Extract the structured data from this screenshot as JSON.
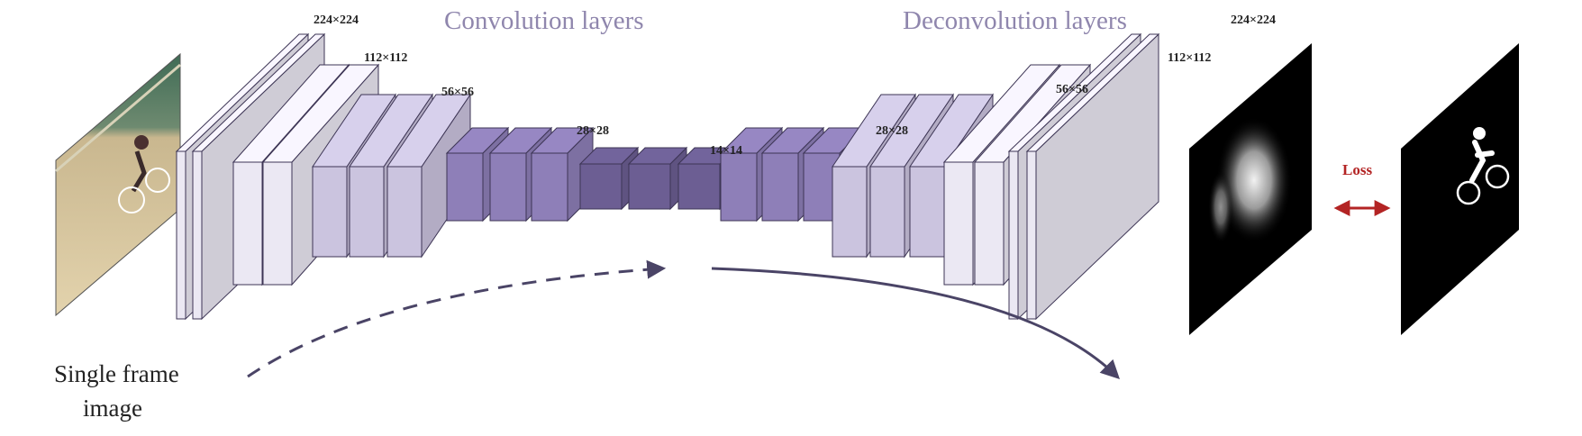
{
  "sections": {
    "encoder_title": "Convolution layers",
    "decoder_title": "Deconvolution layers"
  },
  "input": {
    "caption_line1": "Single frame",
    "caption_line2": "image"
  },
  "loss": {
    "label": "Loss",
    "color": "#b32424"
  },
  "dimension_labels": {
    "enc_224": "224×224",
    "enc_112": "112×112",
    "enc_56": "56×56",
    "enc_28": "28×28",
    "mid_14": "14×14",
    "dec_28": "28×28",
    "dec_56": "56×56",
    "dec_112": "112×112",
    "dec_224": "224×224"
  },
  "colors": {
    "title": "#8f86ad",
    "block_light": "#ebe8f3",
    "block_mid": "#cbc4df",
    "block_dark": "#8e7fb8",
    "block_darkest": "#6c5e93",
    "arrow": "#4a4466",
    "output_map": "#000000",
    "ground_truth": "#000000"
  }
}
